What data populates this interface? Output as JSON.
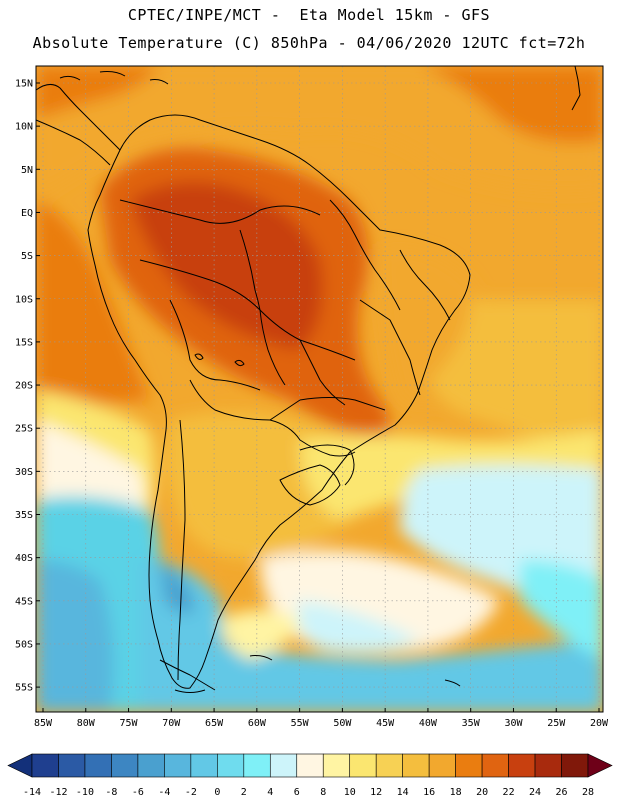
{
  "title_line1": "CPTEC/INPE/MCT -  Eta Model 15km - GFS",
  "title_line2": "Absolute Temperature (C) 850hPa - 04/06/2020 12UTC fct=72h",
  "lat_labels": [
    "15N",
    "10N",
    "5N",
    "EQ",
    "5S",
    "10S",
    "15S",
    "20S",
    "25S",
    "30S",
    "35S",
    "40S",
    "45S",
    "50S",
    "55S"
  ],
  "lon_labels": [
    "85W",
    "80W",
    "75W",
    "70W",
    "65W",
    "60W",
    "55W",
    "50W",
    "45W",
    "40W",
    "35W",
    "30W",
    "25W",
    "20W"
  ],
  "colorbar": {
    "labels": [
      "-14",
      "-12",
      "-10",
      "-8",
      "-6",
      "-4",
      "-2",
      "0",
      "2",
      "4",
      "6",
      "8",
      "10",
      "12",
      "14",
      "16",
      "18",
      "20",
      "22",
      "24",
      "26",
      "28"
    ],
    "colors": [
      "#1f3f8f",
      "#2b5aa5",
      "#3370b5",
      "#3d86c2",
      "#4aa0cf",
      "#58b6dd",
      "#62c8e6",
      "#6fdcee",
      "#7ff0f7",
      "#cdf4fa",
      "#fff6e2",
      "#fff4a3",
      "#fbe670",
      "#f7d154",
      "#f4be3e",
      "#f2a82e",
      "#ea7d10",
      "#e06411",
      "#c8400f",
      "#a82a0d",
      "#80180a"
    ],
    "low_arrow_color": "#13307a",
    "high_arrow_color": "#6e0018"
  },
  "colors": {
    "ocean_cold": "#5ad2e6",
    "ocean_cool": "#cdf4fa",
    "warm": "#f4be3e",
    "hot": "#e06411",
    "border": "#000000"
  }
}
